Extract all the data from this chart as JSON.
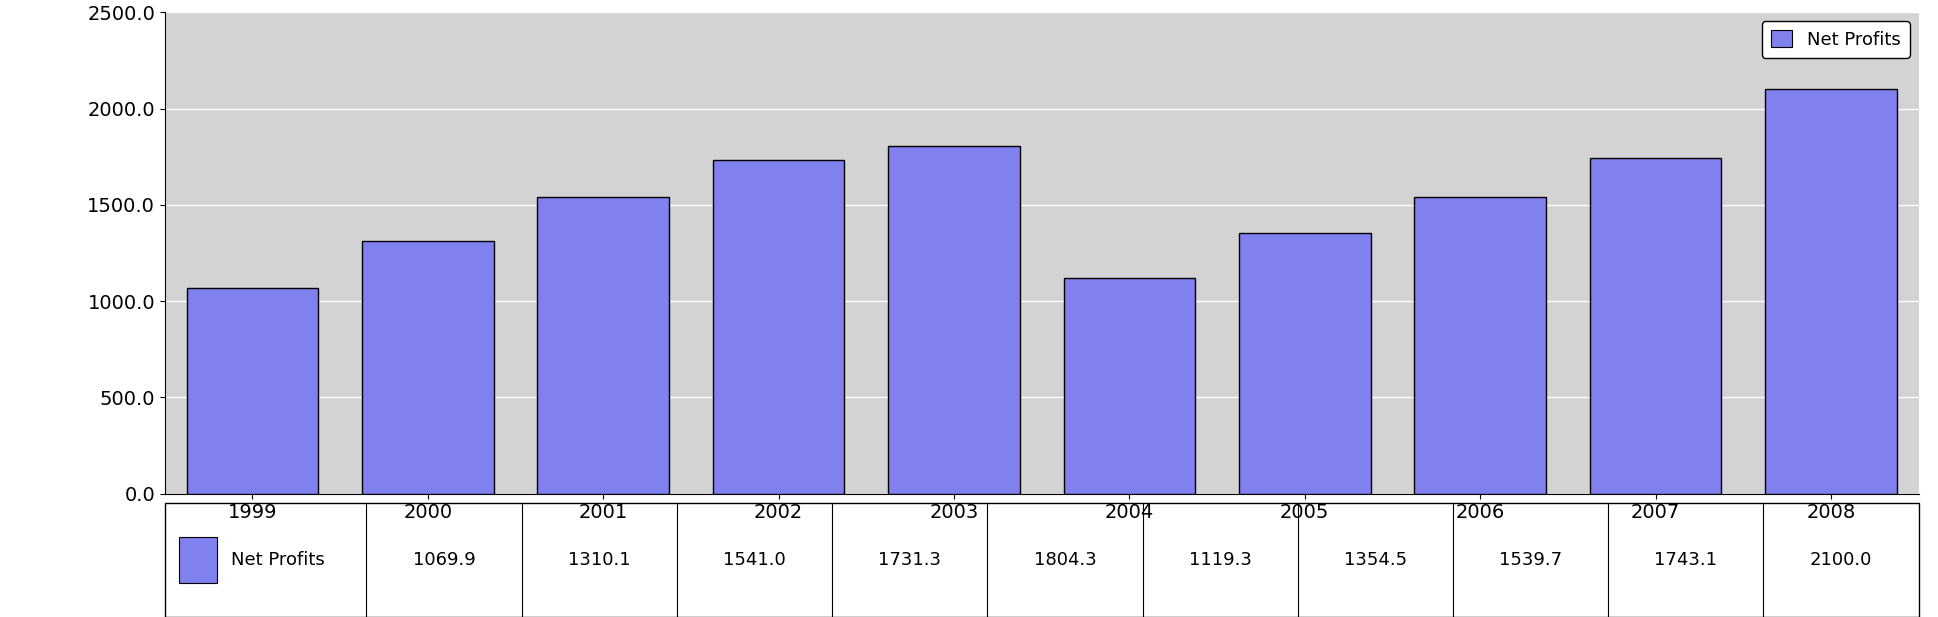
{
  "years": [
    "1999",
    "2000",
    "2001",
    "2002",
    "2003",
    "2004",
    "2005",
    "2006",
    "2007",
    "2008"
  ],
  "values": [
    1069.9,
    1310.1,
    1541.0,
    1731.3,
    1804.3,
    1119.3,
    1354.5,
    1539.7,
    1743.1,
    2100.0
  ],
  "bar_color": "#8080EE",
  "bar_edge_color": "#000000",
  "bar_width": 0.75,
  "ylim": [
    0,
    2500
  ],
  "yticks": [
    0.0,
    500.0,
    1000.0,
    1500.0,
    2000.0,
    2500.0
  ],
  "ytick_labels": [
    "0.0",
    "500.0",
    "1000.0",
    "1500.0",
    "2000.0",
    "2500.0"
  ],
  "legend_label": "Net Profits",
  "legend_patch_color": "#8080EE",
  "legend_patch_edge": "#000000",
  "plot_area_color": "#D3D3D3",
  "outer_bg_color": "#FFFFFF",
  "grid_color": "#FFFFFF",
  "table_label": "Net Profits",
  "table_values": [
    "1069.9",
    "1310.1",
    "1541.0",
    "1731.3",
    "1804.3",
    "1119.3",
    "1354.5",
    "1539.7",
    "1743.1",
    "2100.0"
  ],
  "font_size_ticks": 14,
  "font_size_legend": 13,
  "font_size_table": 13
}
